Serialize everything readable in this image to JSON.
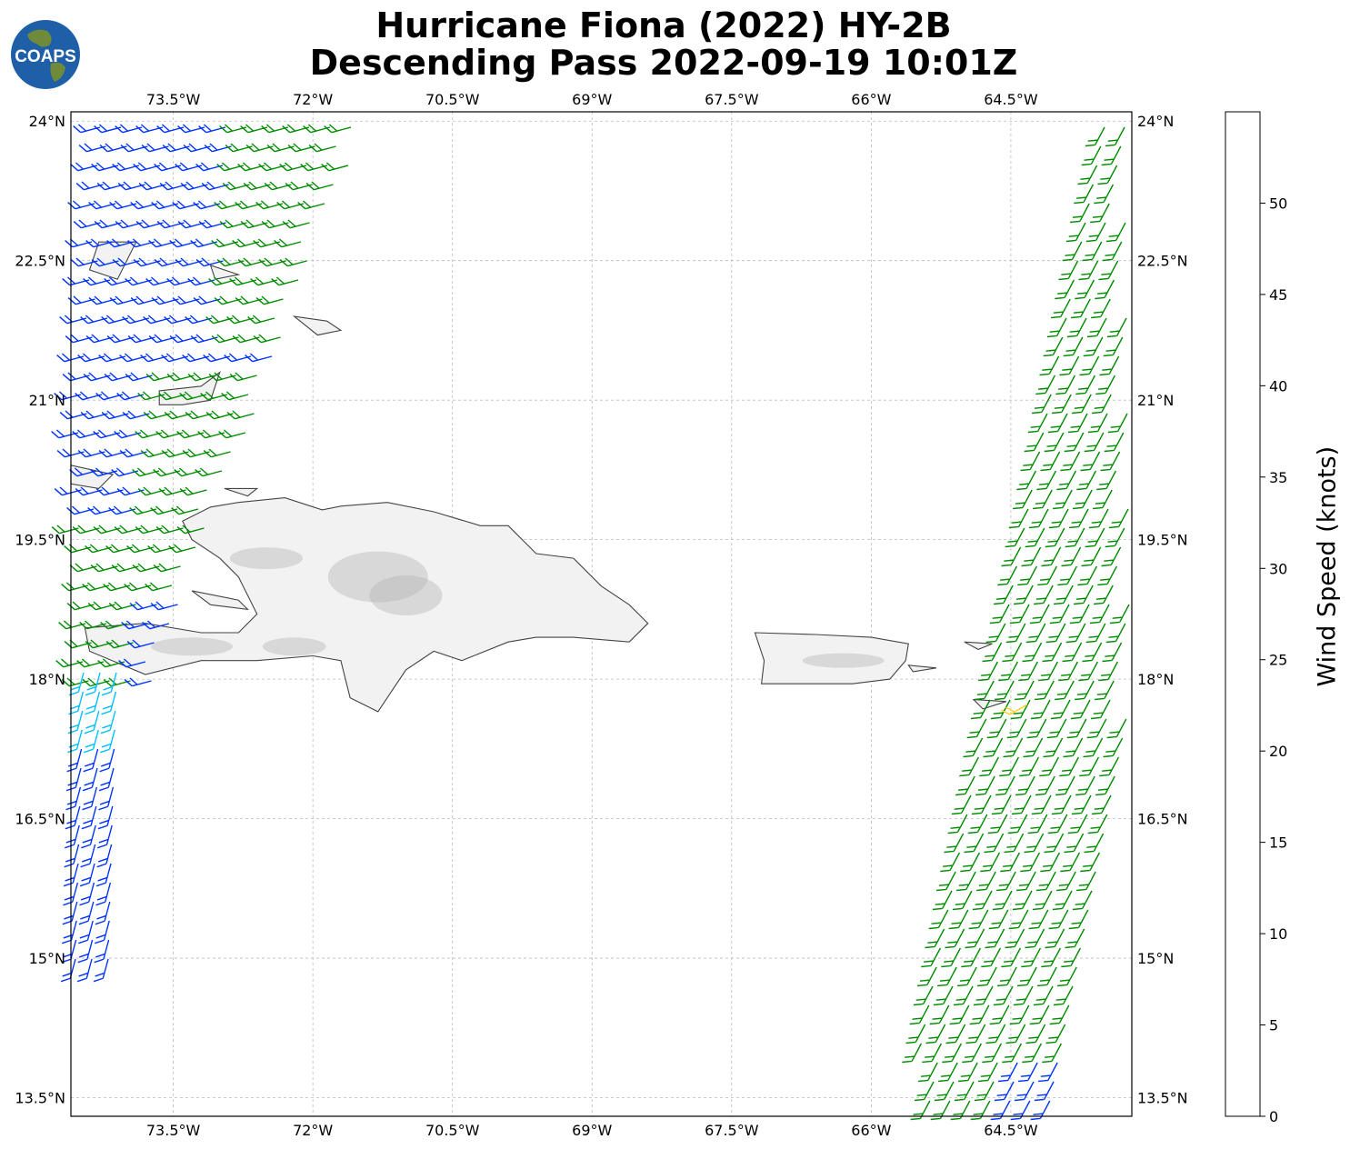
{
  "title": {
    "line1": "Hurricane Fiona (2022) HY-2B",
    "line2": "Descending Pass 2022-09-19 10:01Z"
  },
  "logo": {
    "text": "COAPS",
    "icon": "globe-logo-icon"
  },
  "map": {
    "lon_range": [
      -74.6,
      -63.2
    ],
    "lat_range": [
      13.3,
      24.1
    ],
    "lon_ticks": [
      "73.5°W",
      "72°W",
      "70.5°W",
      "69°W",
      "67.5°W",
      "66°W",
      "64.5°W"
    ],
    "lon_values": [
      -73.5,
      -72,
      -70.5,
      -69,
      -67.5,
      -66,
      -64.5
    ],
    "lat_ticks": [
      "24°N",
      "22.5°N",
      "21°N",
      "19.5°N",
      "18°N",
      "16.5°N",
      "15°N",
      "13.5°N"
    ],
    "lat_values": [
      24,
      22.5,
      21,
      19.5,
      18,
      16.5,
      15,
      13.5
    ],
    "grid": true,
    "land_color": "#f2f2f2",
    "coast_color": "#444444"
  },
  "colorbar": {
    "label": "Wind Speed (knots)",
    "ticks": [
      "0",
      "5",
      "10",
      "15",
      "20",
      "25",
      "30",
      "35",
      "40",
      "45",
      "50"
    ],
    "colors": [
      "#5a5a5a",
      "#00bfff",
      "#0033ff",
      "#008c00",
      "#ffd21a",
      "#ff8c0a",
      "#ff0d0d",
      "#82412d",
      "#f000f0",
      "#8200b4",
      "#28005a"
    ]
  }
}
